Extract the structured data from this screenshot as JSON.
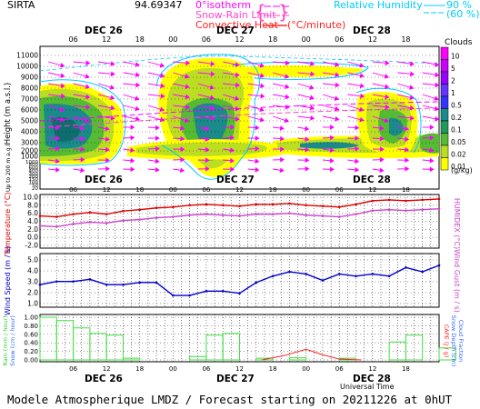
{
  "header": {
    "site": "SIRTA",
    "coords": "94.69347",
    "legend_isotherm": "0°isotherm",
    "legend_snow_rain": "Snow-Rain Limit",
    "legend_convective": "Convective Heat",
    "legend_convective_unit": "(°C/minute)",
    "legend_rh": "Relative Humidity",
    "rh_90": "90 %",
    "rh_60": "(60 %)",
    "colors": {
      "isotherm": "#ff00ff",
      "snow_rain": "#ff44cc",
      "convective": "#ff0000",
      "rh": "#00ccff"
    }
  },
  "days": [
    "DEC 26",
    "DEC 27",
    "DEC 28"
  ],
  "hours": [
    "06",
    "12",
    "18",
    "00",
    "06",
    "12",
    "18",
    "00",
    "06",
    "12",
    "18"
  ],
  "clouds": {
    "title": "Clouds",
    "unit": "(g/kg)",
    "scale": [
      "10",
      "5",
      "2",
      "1",
      "0.5",
      "0.2",
      "0.1",
      "0.05",
      "0.02",
      "0.01"
    ],
    "scale_colors": [
      "#ff00ff",
      "#cc00ff",
      "#9900ff",
      "#6633ff",
      "#3333ff",
      "#1a8a8a",
      "#1f9a5a",
      "#55bb33",
      "#bbdd22",
      "#ffff00"
    ],
    "y_ticks_top": [
      "11000",
      "9000",
      "7000",
      "5000",
      "3000",
      "1000"
    ],
    "y_ticks_mid": [
      "10000",
      "8000",
      "6000",
      "4000",
      "2000"
    ],
    "y_ticks_low": [
      "600",
      "400",
      "200",
      "100",
      "50",
      "20"
    ],
    "y_low_ticks": [
      "1000",
      "800",
      "600",
      "400",
      "300",
      "200",
      "150",
      "100",
      "50",
      "20"
    ],
    "ylabel": "Height  (m a.s.l.)",
    "ylabel2": "Up to 200 m a.g.l."
  },
  "temperature": {
    "ylabel": "Temperature (°C)",
    "ylabel_right": "HUMIDEX (°C)",
    "y_ticks": [
      "10.0",
      "8.0",
      "6.0",
      "4.0",
      "2.0",
      "0.0",
      "-2.0"
    ],
    "chart_data": {
      "type": "line",
      "ylim": [
        -2,
        10
      ],
      "x_hours": [
        0,
        3,
        6,
        9,
        12,
        15,
        18,
        21,
        24,
        27,
        30,
        33,
        36,
        39,
        42,
        45,
        48,
        51,
        54,
        57,
        60,
        63,
        66,
        69,
        72
      ],
      "series": [
        {
          "values": [
            5.2,
            5.0,
            5.6,
            6.0,
            5.6,
            6.3,
            6.6,
            7.0,
            7.2,
            7.6,
            7.8,
            7.6,
            7.4,
            7.8,
            7.8,
            8.0,
            7.6,
            7.4,
            7.2,
            7.8,
            8.6,
            8.8,
            8.6,
            8.8,
            9.0
          ],
          "color": "#dd0000"
        },
        {
          "values": [
            3.0,
            2.8,
            3.4,
            3.8,
            3.6,
            4.2,
            4.4,
            4.8,
            5.0,
            5.4,
            5.6,
            5.4,
            5.2,
            5.6,
            5.6,
            5.8,
            5.4,
            5.2,
            5.0,
            5.6,
            6.4,
            6.6,
            6.4,
            6.6,
            6.8
          ],
          "color": "#cc44cc"
        }
      ]
    }
  },
  "wind": {
    "ylabel": "Wind Speed (m / s)",
    "ylabel_right": "Wind Gust (m / s)",
    "y_ticks": [
      "5.0",
      "4.0",
      "3.0",
      "2.0",
      "1.0"
    ],
    "chart_data": {
      "type": "line",
      "ylim": [
        0.5,
        5.5
      ],
      "x_hours": [
        0,
        3,
        6,
        9,
        12,
        15,
        18,
        21,
        24,
        27,
        30,
        33,
        36,
        39,
        42,
        45,
        48,
        51,
        54,
        57,
        60,
        63,
        66,
        69,
        72
      ],
      "series": [
        {
          "values": [
            2.6,
            2.9,
            2.9,
            3.1,
            2.6,
            2.6,
            2.8,
            2.8,
            1.6,
            1.6,
            2.0,
            2.0,
            1.8,
            2.8,
            3.4,
            3.8,
            3.6,
            3.0,
            3.6,
            3.4,
            3.6,
            3.4,
            4.2,
            3.8,
            4.4
          ],
          "color": "#0000cc"
        }
      ]
    }
  },
  "rain": {
    "ylabel": "Rain (mm / hour)",
    "ylabel2": "Snow (cm / hour)",
    "ylabel_right": "CAPE (J / g)",
    "ylabel_right2": "Snow Depth (cm)",
    "ylabel_right3": "Cloud Fraction",
    "y_ticks": [
      "1.00",
      "0.80",
      "0.60",
      "0.40",
      "0.20",
      "0.00"
    ],
    "xlabel": "Universal Time",
    "chart_data": {
      "type": "bar",
      "ylim": [
        0,
        1
      ],
      "bar_width_hours": 3,
      "rain_bars": [
        {
          "x": 0,
          "value": 1.0
        },
        {
          "x": 3,
          "value": 0.92
        },
        {
          "x": 6,
          "value": 0.75
        },
        {
          "x": 9,
          "value": 0.62
        },
        {
          "x": 12,
          "value": 0.58
        },
        {
          "x": 15,
          "value": 0.04
        },
        {
          "x": 27,
          "value": 0.08
        },
        {
          "x": 30,
          "value": 0.58
        },
        {
          "x": 33,
          "value": 0.62
        },
        {
          "x": 39,
          "value": 0.04
        },
        {
          "x": 45,
          "value": 0.05
        },
        {
          "x": 54,
          "value": 0.04
        },
        {
          "x": 63,
          "value": 0.42
        },
        {
          "x": 66,
          "value": 0.58
        },
        {
          "x": 72,
          "value": 0.28
        }
      ],
      "cape": {
        "x": [
          40,
          44,
          48,
          51,
          54,
          58
        ],
        "values": [
          0.0,
          0.1,
          0.25,
          0.12,
          0.02,
          0.0
        ],
        "color": "#ff2222"
      }
    }
  },
  "footer": "Modele Atmospherique LMDZ / Forecast starting on 20211226 at 0hUT"
}
